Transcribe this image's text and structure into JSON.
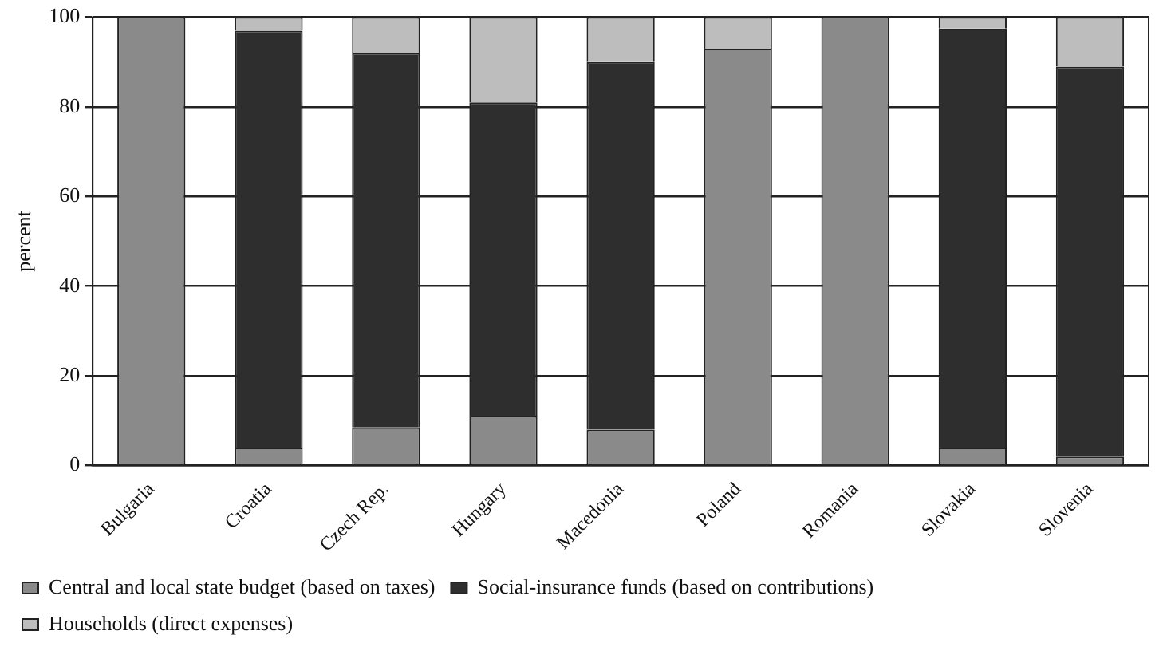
{
  "chart_data": {
    "type": "bar",
    "stacked": true,
    "ylabel": "percent",
    "categories": [
      "Bulgaria",
      "Croatia",
      "Czech Rep.",
      "Hungary",
      "Macedonia",
      "Poland",
      "Romania",
      "Slovakia",
      "Slovenia"
    ],
    "series": [
      {
        "name": "Central and local state budget (based on taxes)",
        "color": "#8a8a8a",
        "values": [
          100,
          4,
          8.5,
          11,
          8,
          93,
          100,
          4,
          2
        ]
      },
      {
        "name": "Social-insurance funds (based on contributions)",
        "color": "#2e2e2e",
        "values": [
          0,
          93,
          83.5,
          70,
          82,
          0,
          0,
          93.5,
          87
        ]
      },
      {
        "name": "Households (direct expenses)",
        "color": "#bdbdbd",
        "values": [
          0,
          3,
          8,
          19,
          10,
          7,
          0,
          2.5,
          11
        ]
      }
    ],
    "ylim": [
      0,
      100
    ],
    "yticks": [
      0,
      20,
      40,
      60,
      80,
      100
    ],
    "grid": "y",
    "legend": "bottom"
  }
}
